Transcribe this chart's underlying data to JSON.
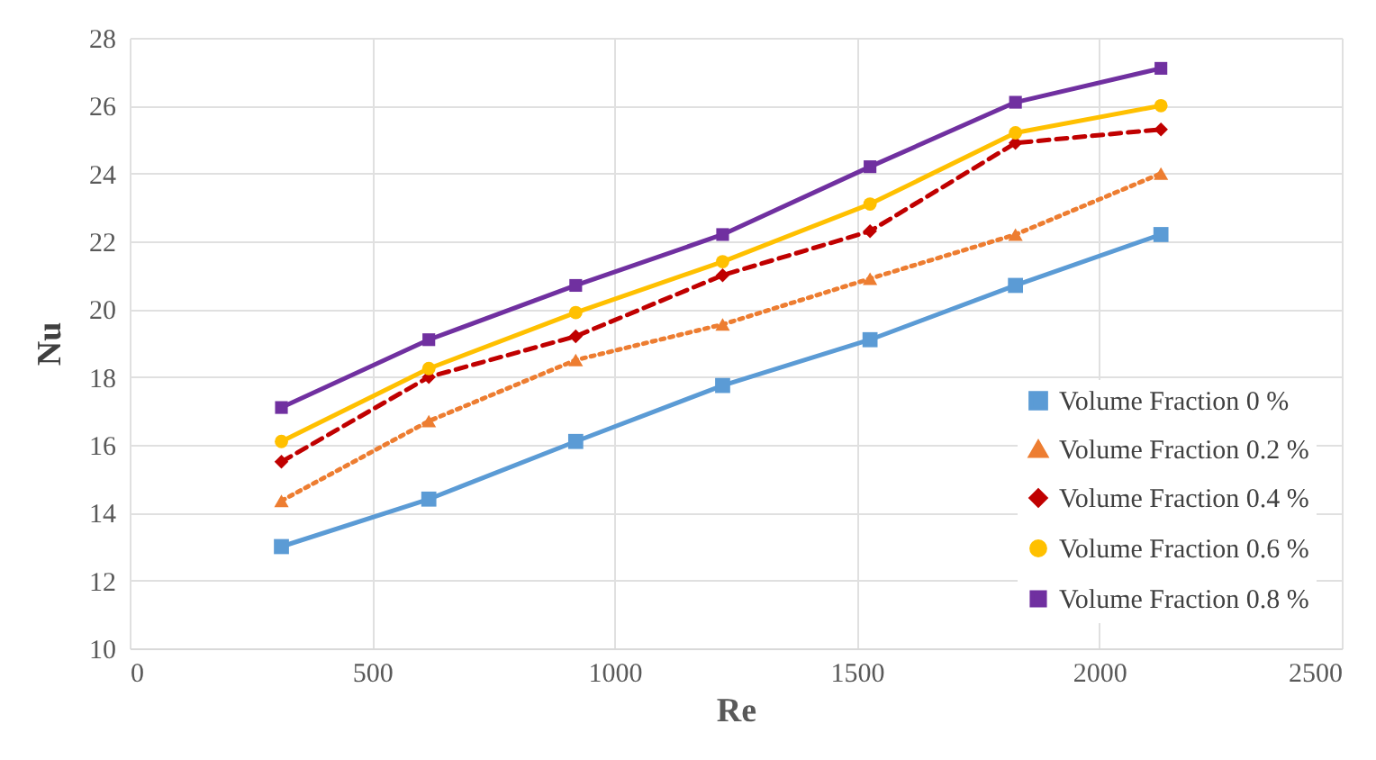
{
  "chart_data": {
    "type": "line",
    "xlabel": "Re",
    "ylabel": "Nu",
    "x": [
      313,
      617,
      920,
      1223,
      1527,
      1827,
      2127
    ],
    "xlim": [
      0,
      2500
    ],
    "xticks": [
      0,
      500,
      1000,
      1500,
      2000,
      2500
    ],
    "ylim": [
      10,
      28
    ],
    "yticks": [
      10,
      12,
      14,
      16,
      18,
      20,
      22,
      24,
      26,
      28
    ],
    "grid": true,
    "legend": "bottom right",
    "series": [
      {
        "name": "Volume Fraction 0 %",
        "color": "#5b9bd5",
        "marker": "square",
        "line_style": "solid",
        "values": [
          13.0,
          14.4,
          16.1,
          17.75,
          19.1,
          20.7,
          22.2
        ]
      },
      {
        "name": "Volume Fraction 0.2 %",
        "color": "#ed7d31",
        "marker": "triangle",
        "line_style": "dotted",
        "values": [
          14.35,
          16.7,
          18.5,
          19.55,
          20.9,
          22.2,
          24.0
        ]
      },
      {
        "name": "Volume Fraction 0.4 %",
        "color": "#c00000",
        "marker": "diamond",
        "line_style": "dashed",
        "values": [
          15.5,
          18.0,
          19.2,
          21.0,
          22.3,
          24.9,
          25.3
        ]
      },
      {
        "name": "Volume Fraction 0.6 %",
        "color": "#ffc000",
        "marker": "circle",
        "line_style": "solid",
        "values": [
          16.1,
          18.25,
          19.9,
          21.4,
          23.1,
          25.2,
          26.0
        ]
      },
      {
        "name": "Volume Fraction 0.8 %",
        "color": "#7030a0",
        "marker": "square",
        "line_style": "solid",
        "values": [
          17.1,
          19.1,
          20.7,
          22.2,
          24.2,
          26.1,
          27.1
        ]
      }
    ]
  }
}
